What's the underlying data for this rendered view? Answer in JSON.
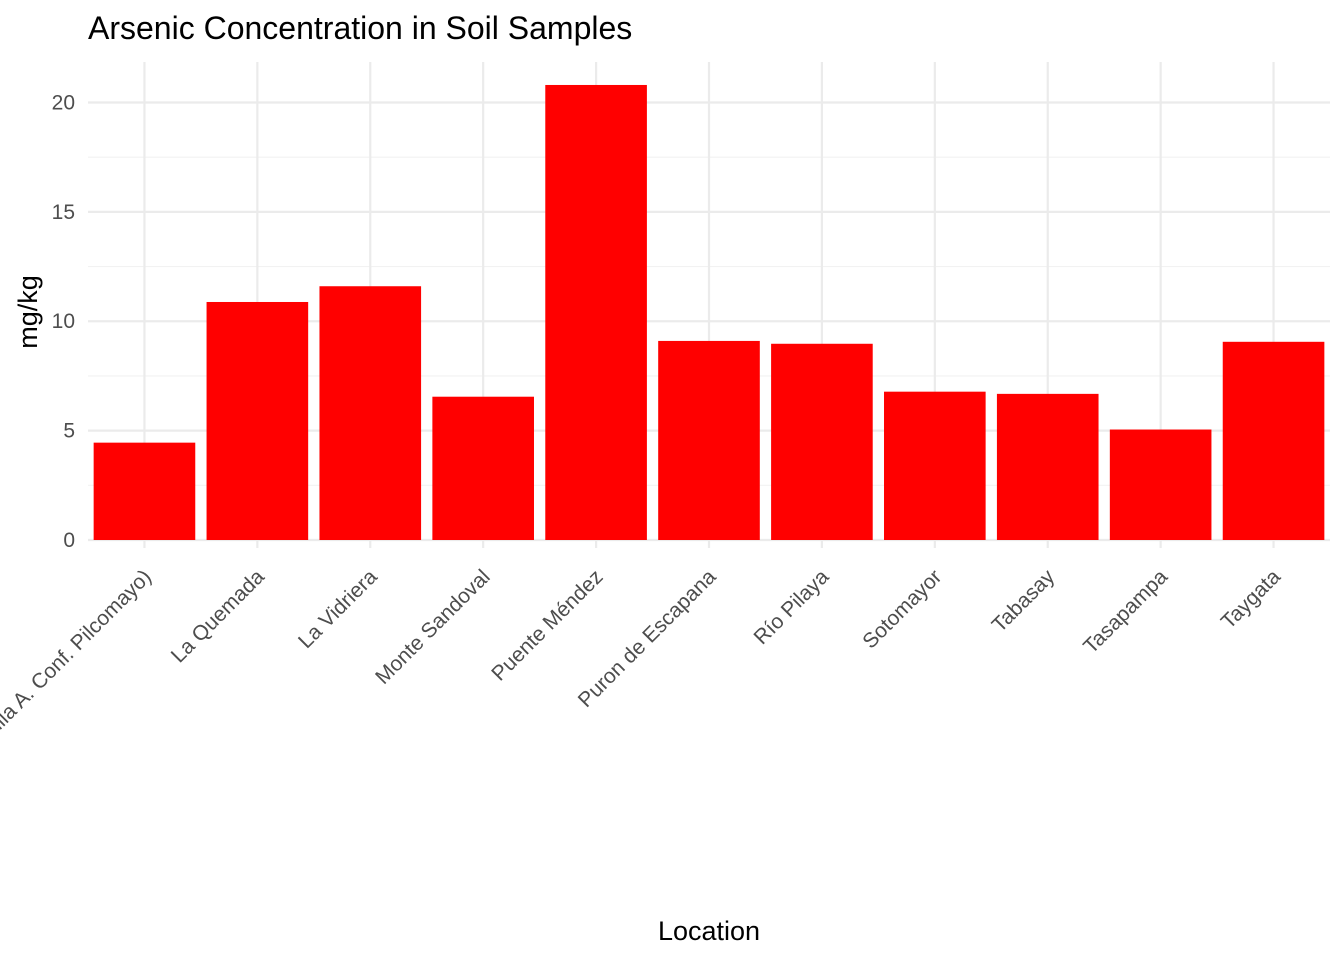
{
  "chart_data": {
    "type": "bar",
    "title": "Arsenic Concentration in Soil Samples",
    "xlabel": "Location",
    "ylabel": "mg/kg",
    "categories": [
      "(Villa A. Conf. Pilcomayo)",
      "La Quemada",
      "La Vidriera",
      "Monte Sandoval",
      "Puente Méndez",
      "Puron de Escapana",
      "Río Pilaya",
      "Sotomayor",
      "Tabasay",
      "Tasapampa",
      "Taygata"
    ],
    "values": [
      4.45,
      10.88,
      11.6,
      6.55,
      20.8,
      9.1,
      8.97,
      6.78,
      6.68,
      5.05,
      9.06
    ],
    "ylim": [
      0,
      21.85
    ],
    "yticks": [
      0,
      5,
      10,
      15,
      20
    ],
    "grid": true,
    "legend": "none",
    "bar_color": "#FF0000"
  }
}
